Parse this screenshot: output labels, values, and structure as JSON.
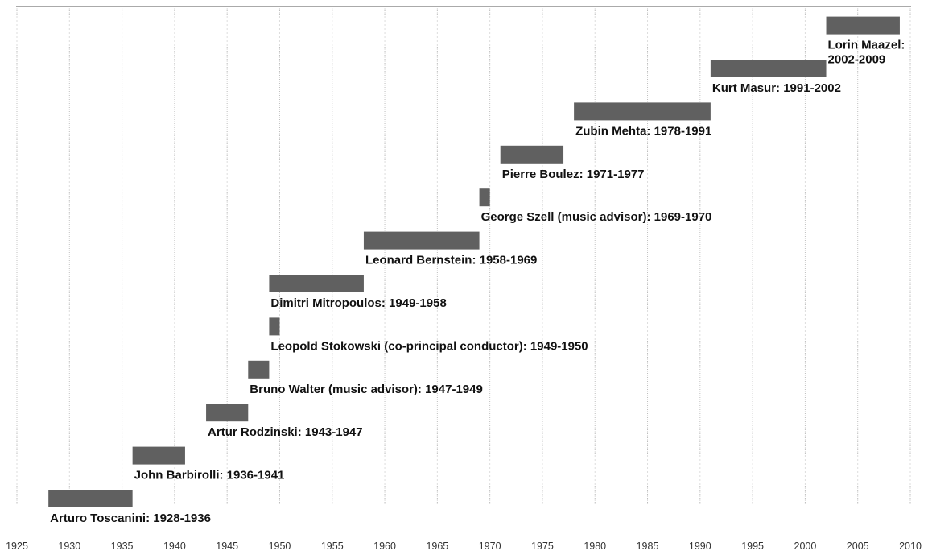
{
  "chart_data": {
    "type": "gantt",
    "title": "",
    "xlabel": "",
    "ylabel": "",
    "xlim": [
      1925,
      2010
    ],
    "x_ticks": [
      1925,
      1930,
      1935,
      1940,
      1945,
      1950,
      1955,
      1960,
      1965,
      1970,
      1975,
      1980,
      1985,
      1990,
      1995,
      2000,
      2005,
      2010
    ],
    "grid": "vertical dotted",
    "bar_color": "#606060",
    "tasks": [
      {
        "label": "Arturo Toscanini: 1928-1936",
        "start": 1928,
        "end": 1936
      },
      {
        "label": "John Barbirolli: 1936-1941",
        "start": 1936,
        "end": 1941
      },
      {
        "label": "Artur Rodzinski: 1943-1947",
        "start": 1943,
        "end": 1947
      },
      {
        "label": "Bruno Walter (music advisor): 1947-1949",
        "start": 1947,
        "end": 1949
      },
      {
        "label": "Leopold Stokowski (co-principal conductor): 1949-1950",
        "start": 1949,
        "end": 1950
      },
      {
        "label": "Dimitri Mitropoulos: 1949-1958",
        "start": 1949,
        "end": 1958
      },
      {
        "label": "Leonard Bernstein: 1958-1969",
        "start": 1958,
        "end": 1969
      },
      {
        "label": "George Szell (music advisor): 1969-1970",
        "start": 1969,
        "end": 1970
      },
      {
        "label": "Pierre Boulez: 1971-1977",
        "start": 1971,
        "end": 1977
      },
      {
        "label": "Zubin Mehta: 1978-1991",
        "start": 1978,
        "end": 1991
      },
      {
        "label": "Kurt Masur: 1991-2002",
        "start": 1991,
        "end": 2002
      },
      {
        "label": "Lorin Maazel: 2002-2009",
        "start": 2002,
        "end": 2009,
        "label_lines": [
          "Lorin Maazel:",
          "2002-2009"
        ]
      }
    ]
  }
}
